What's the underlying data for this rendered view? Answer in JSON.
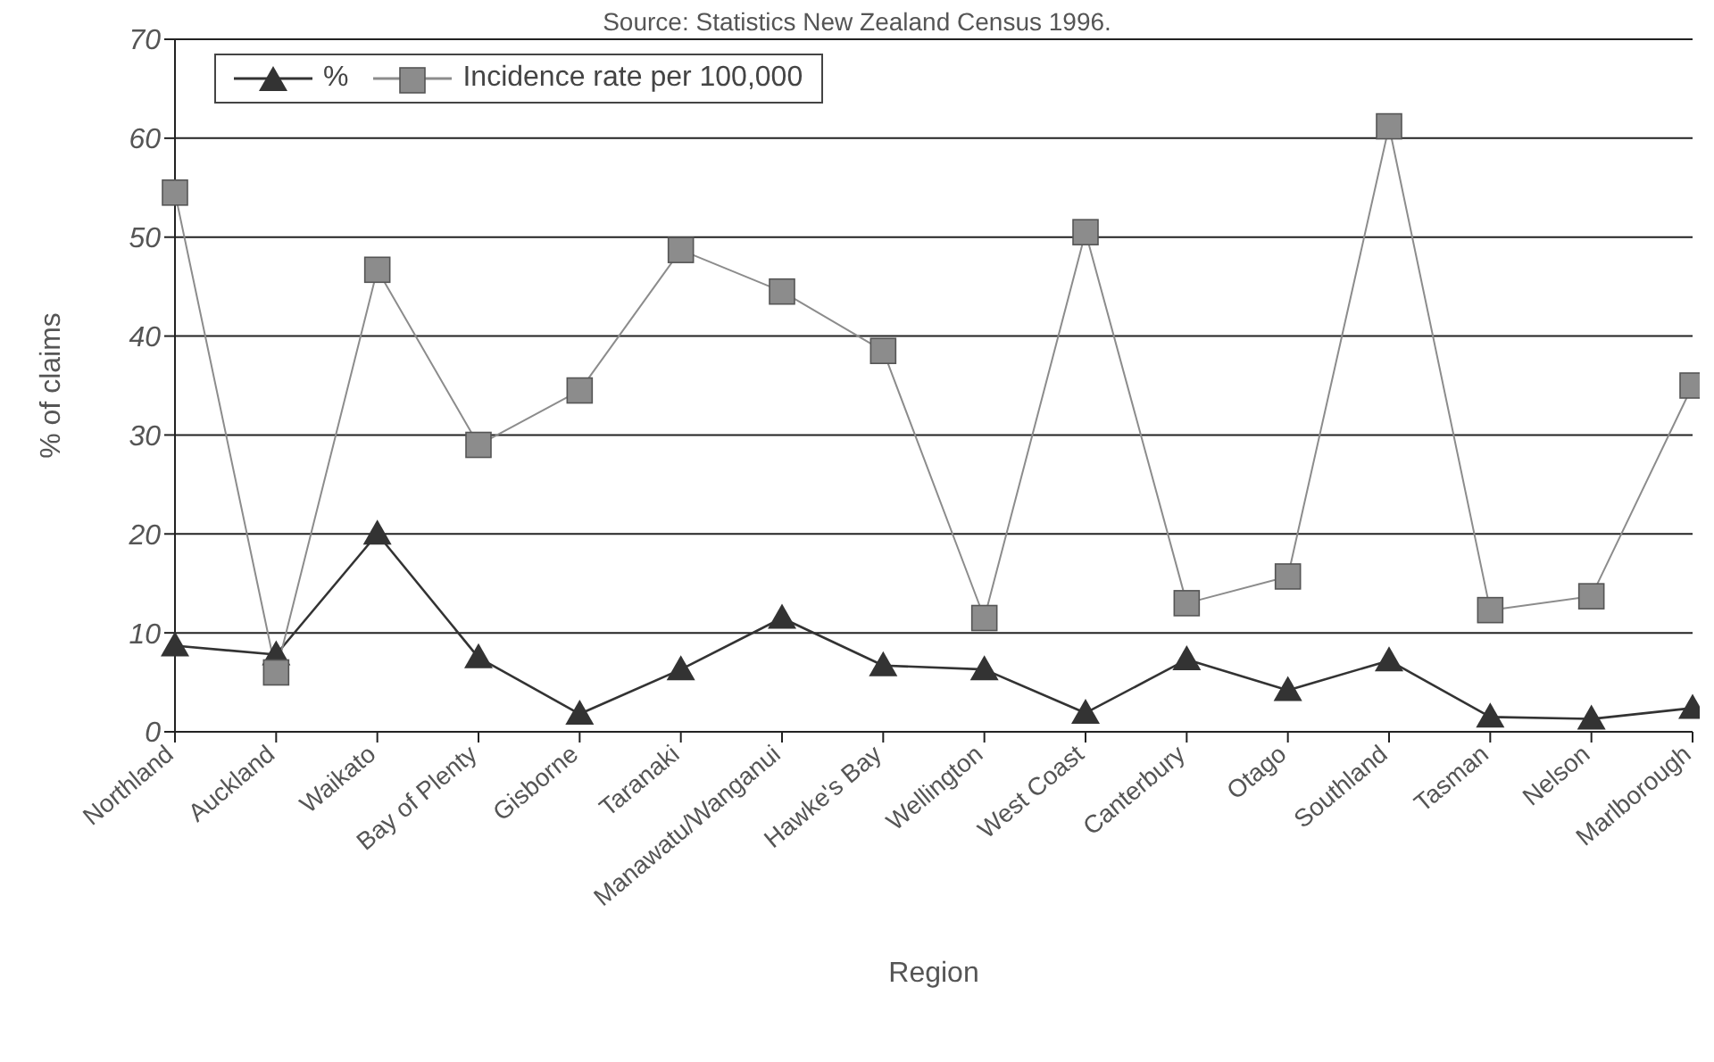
{
  "chart_data": {
    "type": "line",
    "subtitle": "Source: Statistics New Zealand Census 1996.",
    "xlabel": "Region",
    "ylabel": "% of claims",
    "categories": [
      "Northland",
      "Auckland",
      "Waikato",
      "Bay of Plenty",
      "Gisborne",
      "Taranaki",
      "Manawatu/Wanganui",
      "Hawke's Bay",
      "Wellington",
      "West Coast",
      "Canterbury",
      "Otago",
      "Southland",
      "Tasman",
      "Nelson",
      "Marlborough"
    ],
    "series": [
      {
        "name": "%",
        "color": "#333333",
        "marker": "triangle",
        "values": [
          8.7,
          7.8,
          20,
          7.5,
          1.8,
          6.3,
          11.5,
          6.7,
          6.3,
          1.9,
          7.3,
          4.2,
          7.2,
          1.5,
          1.3,
          2.4
        ]
      },
      {
        "name": "Incidence rate per 100,000",
        "color": "#8c8c8c",
        "marker": "square",
        "values": [
          54.5,
          6,
          46.7,
          29,
          34.5,
          48.7,
          44.5,
          38.5,
          11.5,
          50.5,
          13,
          15.7,
          61.2,
          12.3,
          13.7,
          35
        ]
      }
    ],
    "ylim": [
      0,
      70
    ],
    "yticks": [
      0,
      10,
      20,
      30,
      40,
      50,
      60,
      70
    ],
    "grid": "y",
    "legend": "top left",
    "line_style": "solid"
  }
}
